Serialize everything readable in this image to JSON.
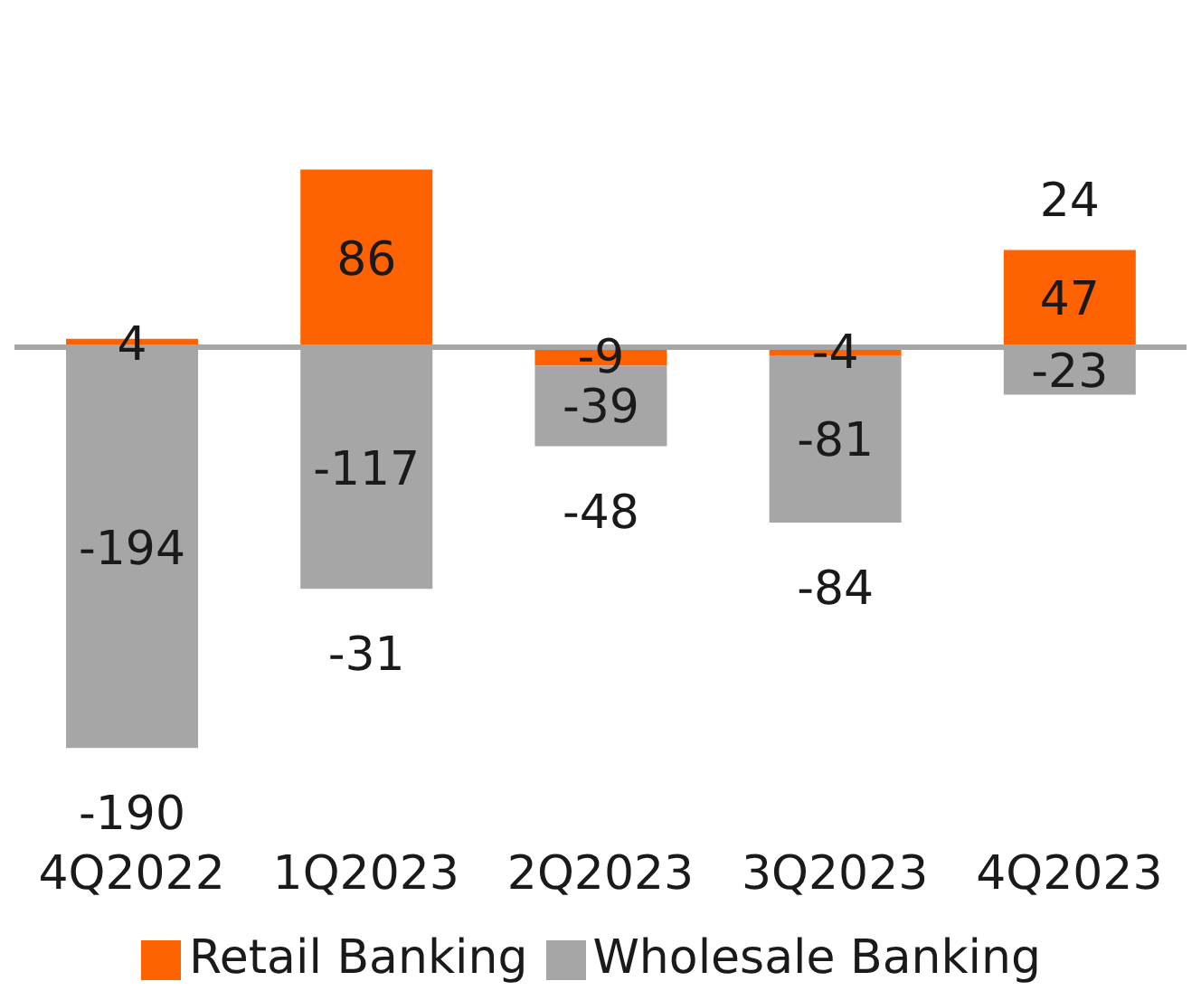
{
  "chart_data": {
    "type": "bar",
    "stacked": true,
    "categories": [
      "4Q2022",
      "1Q2023",
      "2Q2023",
      "3Q2023",
      "4Q2023"
    ],
    "series": [
      {
        "name": "Retail Banking",
        "color": "#ff6200",
        "values": [
          4,
          86,
          -9,
          -4,
          47
        ]
      },
      {
        "name": "Wholesale Banking",
        "color": "#a6a6a6",
        "values": [
          -194,
          -117,
          -39,
          -81,
          -23
        ]
      }
    ],
    "totals": [
      "-190",
      "-31",
      "-48",
      "-84",
      "24"
    ],
    "data_labels": true,
    "legend": "bottom",
    "tick_labels": "x"
  }
}
